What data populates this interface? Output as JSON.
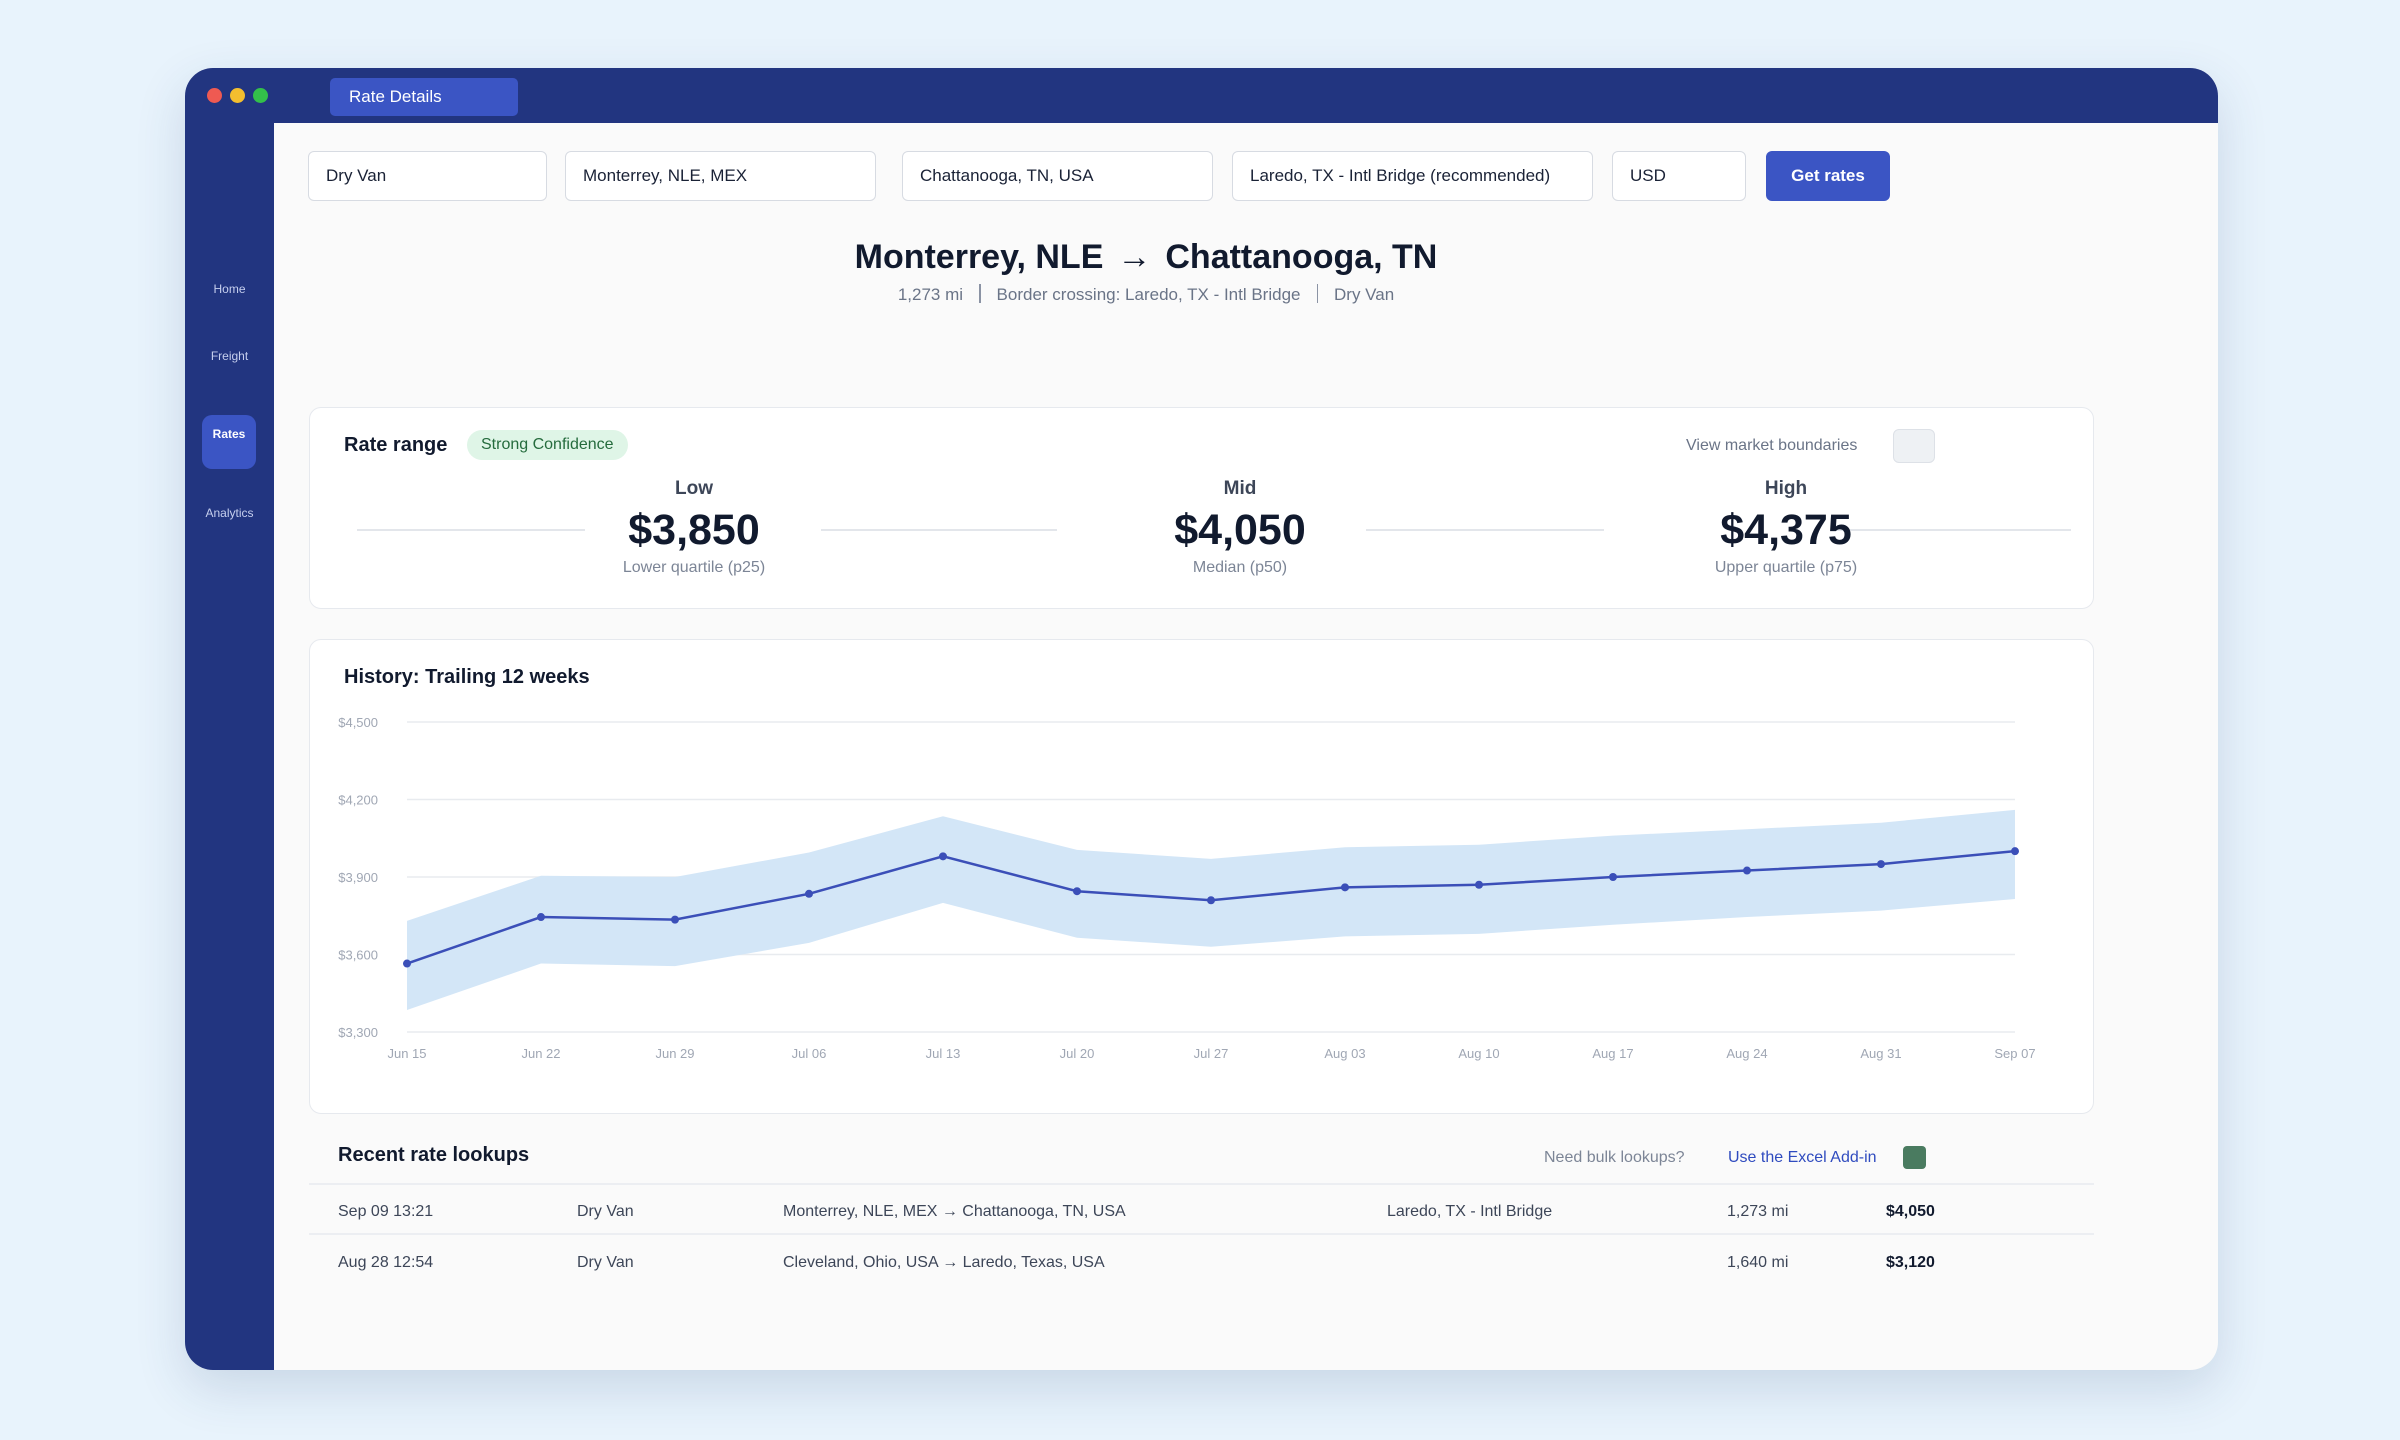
{
  "window": {
    "tab_label": "Rate Details"
  },
  "sidebar": {
    "items": [
      {
        "label": "Home"
      },
      {
        "label": "Freight"
      },
      {
        "label": "Rates",
        "active": true
      },
      {
        "label": "Analytics"
      }
    ]
  },
  "search": {
    "equipment": "Dry Van",
    "origin": "Monterrey, NLE, MEX",
    "destination": "Chattanooga, TN, USA",
    "border": "Laredo, TX - Intl Bridge (recommended)",
    "currency": "USD",
    "submit_label": "Get rates"
  },
  "route": {
    "origin": "Monterrey, NLE",
    "arrow": "→",
    "destination": "Chattanooga, TN",
    "distance": "1,273 mi",
    "border": "Border crossing: Laredo, TX - Intl Bridge",
    "equipment": "Dry Van"
  },
  "rate_range": {
    "title": "Rate range",
    "confidence": "Strong Confidence",
    "toggle_label": "View market boundaries",
    "low": {
      "label": "Low",
      "value": "$3,850",
      "sub": "Lower quartile (p25)"
    },
    "mid": {
      "label": "Mid",
      "value": "$4,050",
      "sub": "Median (p50)"
    },
    "high": {
      "label": "High",
      "value": "$4,375",
      "sub": "Upper quartile (p75)"
    }
  },
  "history": {
    "title": "History: Trailing 12 weeks"
  },
  "chart_data": {
    "type": "line",
    "x": [
      "Jun 15",
      "Jun 22",
      "Jun 29",
      "Jul 06",
      "Jul 13",
      "Jul 20",
      "Jul 27",
      "Aug 03",
      "Aug 10",
      "Aug 17",
      "Aug 24",
      "Aug 31",
      "Sep 07"
    ],
    "series": [
      {
        "role": "median",
        "values": [
          3565,
          3745,
          3735,
          3835,
          3980,
          3845,
          3810,
          3860,
          3870,
          3900,
          3925,
          3950,
          4000
        ]
      },
      {
        "role": "band_upper",
        "values": [
          3730,
          3905,
          3900,
          3995,
          4135,
          4005,
          3970,
          4015,
          4025,
          4060,
          4085,
          4110,
          4160
        ]
      },
      {
        "role": "band_lower",
        "values": [
          3385,
          3565,
          3555,
          3645,
          3800,
          3665,
          3630,
          3670,
          3680,
          3715,
          3745,
          3770,
          3815
        ]
      }
    ],
    "yticks": [
      "$4,500",
      "$4,200",
      "$3,900",
      "$3,600",
      "$3,300"
    ],
    "ylim": [
      3300,
      4500
    ],
    "grid": true,
    "colors": {
      "line": "#3b4fb8",
      "band": "#d3e6f7"
    }
  },
  "recent": {
    "title": "Recent rate lookups",
    "bulk_prompt": "Need bulk lookups?",
    "bulk_link": "Use the Excel Add-in",
    "rows": [
      {
        "date": "Sep 09 13:21",
        "equipment": "Dry Van",
        "lane": "Monterrey, NLE, MEX → Chattanooga, TN, USA",
        "border": "Laredo, TX - Intl Bridge",
        "distance": "1,273 mi",
        "price": "$4,050"
      },
      {
        "date": "Aug 28 12:54",
        "equipment": "Dry Van",
        "lane": "Cleveland, Ohio, USA → Laredo, Texas, USA",
        "border": "",
        "distance": "1,640 mi",
        "price": "$3,120"
      }
    ]
  }
}
